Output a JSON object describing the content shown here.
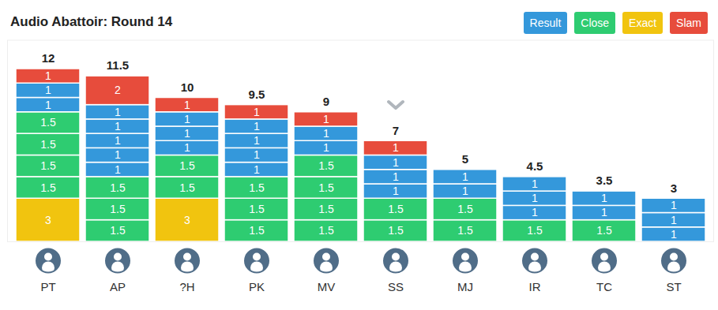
{
  "chart_data": {
    "type": "bar",
    "title": "Audio Abattoir: Round 14",
    "categories": [
      "PT",
      "AP",
      "?H",
      "PK",
      "MV",
      "SS",
      "MJ",
      "IR",
      "TC",
      "ST"
    ],
    "series": [
      {
        "name": "Result",
        "color": "#3498db"
      },
      {
        "name": "Close",
        "color": "#2ecc71"
      },
      {
        "name": "Exact",
        "color": "#f1c40f"
      },
      {
        "name": "Slam",
        "color": "#e74c3c"
      }
    ],
    "stacks": [
      [
        {
          "series": "Exact",
          "value": 3
        },
        {
          "series": "Close",
          "value": 1.5
        },
        {
          "series": "Close",
          "value": 1.5
        },
        {
          "series": "Close",
          "value": 1.5
        },
        {
          "series": "Close",
          "value": 1.5
        },
        {
          "series": "Result",
          "value": 1
        },
        {
          "series": "Result",
          "value": 1
        },
        {
          "series": "Slam",
          "value": 1
        }
      ],
      [
        {
          "series": "Close",
          "value": 1.5
        },
        {
          "series": "Close",
          "value": 1.5
        },
        {
          "series": "Close",
          "value": 1.5
        },
        {
          "series": "Result",
          "value": 1
        },
        {
          "series": "Result",
          "value": 1
        },
        {
          "series": "Result",
          "value": 1
        },
        {
          "series": "Result",
          "value": 1
        },
        {
          "series": "Result",
          "value": 1
        },
        {
          "series": "Slam",
          "value": 2
        }
      ],
      [
        {
          "series": "Exact",
          "value": 3
        },
        {
          "series": "Close",
          "value": 1.5
        },
        {
          "series": "Close",
          "value": 1.5
        },
        {
          "series": "Result",
          "value": 1
        },
        {
          "series": "Result",
          "value": 1
        },
        {
          "series": "Result",
          "value": 1
        },
        {
          "series": "Slam",
          "value": 1
        }
      ],
      [
        {
          "series": "Close",
          "value": 1.5
        },
        {
          "series": "Close",
          "value": 1.5
        },
        {
          "series": "Close",
          "value": 1.5
        },
        {
          "series": "Result",
          "value": 1
        },
        {
          "series": "Result",
          "value": 1
        },
        {
          "series": "Result",
          "value": 1
        },
        {
          "series": "Result",
          "value": 1
        },
        {
          "series": "Slam",
          "value": 1
        }
      ],
      [
        {
          "series": "Close",
          "value": 1.5
        },
        {
          "series": "Close",
          "value": 1.5
        },
        {
          "series": "Close",
          "value": 1.5
        },
        {
          "series": "Close",
          "value": 1.5
        },
        {
          "series": "Result",
          "value": 1
        },
        {
          "series": "Result",
          "value": 1
        },
        {
          "series": "Slam",
          "value": 1
        }
      ],
      [
        {
          "series": "Close",
          "value": 1.5
        },
        {
          "series": "Close",
          "value": 1.5
        },
        {
          "series": "Result",
          "value": 1
        },
        {
          "series": "Result",
          "value": 1
        },
        {
          "series": "Result",
          "value": 1
        },
        {
          "series": "Slam",
          "value": 1
        }
      ],
      [
        {
          "series": "Close",
          "value": 1.5
        },
        {
          "series": "Close",
          "value": 1.5
        },
        {
          "series": "Result",
          "value": 1
        },
        {
          "series": "Result",
          "value": 1
        }
      ],
      [
        {
          "series": "Close",
          "value": 1.5
        },
        {
          "series": "Result",
          "value": 1
        },
        {
          "series": "Result",
          "value": 1
        },
        {
          "series": "Result",
          "value": 1
        }
      ],
      [
        {
          "series": "Close",
          "value": 1.5
        },
        {
          "series": "Result",
          "value": 1
        },
        {
          "series": "Result",
          "value": 1
        }
      ],
      [
        {
          "series": "Result",
          "value": 1
        },
        {
          "series": "Result",
          "value": 1
        },
        {
          "series": "Result",
          "value": 1
        }
      ]
    ],
    "totals": [
      12,
      11.5,
      10,
      9.5,
      9,
      7,
      5,
      4.5,
      3.5,
      3
    ],
    "ylim": [
      0,
      14
    ],
    "stacked": true,
    "data_labels": true,
    "tick_labels": "x",
    "legend": "top-right"
  }
}
